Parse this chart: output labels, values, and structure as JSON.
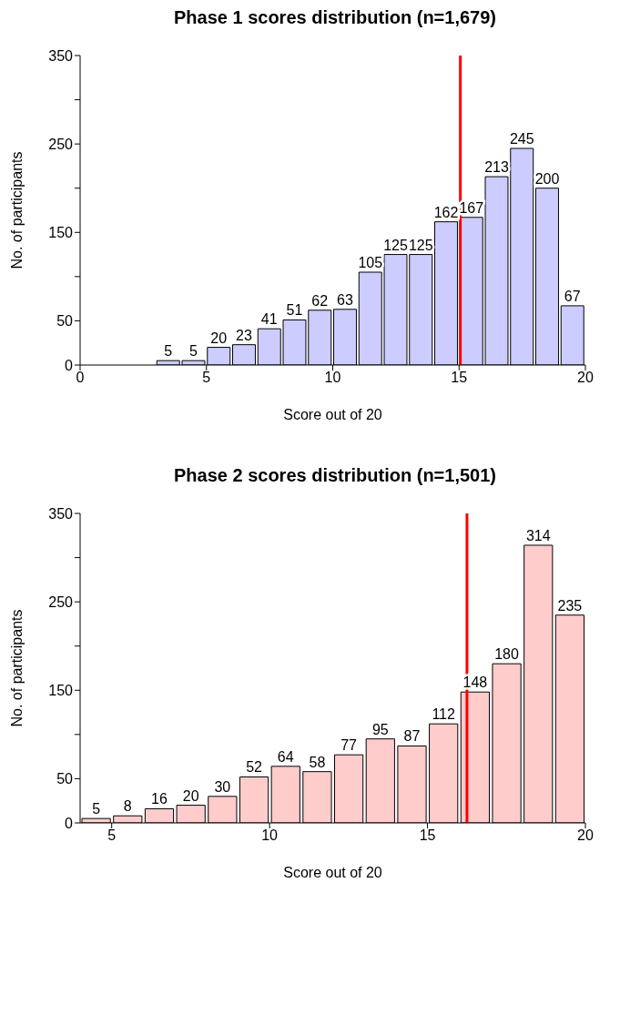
{
  "chart_data": [
    {
      "type": "histogram",
      "title": "Phase 1 scores distribution (n=1,679)",
      "xlabel": "Score out of 20",
      "ylabel": "No. of participants",
      "bins": [
        3,
        4,
        5,
        6,
        7,
        8,
        9,
        10,
        11,
        12,
        13,
        14,
        15,
        16,
        17,
        18,
        19,
        20
      ],
      "values": [
        5,
        5,
        20,
        23,
        41,
        51,
        62,
        63,
        105,
        125,
        125,
        162,
        167,
        213,
        245,
        200,
        67
      ],
      "color": "#ccccff",
      "data_labels": true,
      "xlim": [
        0,
        20
      ],
      "xticks": [
        0,
        5,
        10,
        15,
        20
      ],
      "ylim": [
        0,
        350
      ],
      "yticks": [
        0,
        50,
        {
          "value": 100,
          "label": null
        },
        150,
        {
          "value": 200,
          "label": null
        },
        250,
        {
          "value": 300,
          "label": null
        },
        350
      ],
      "ref_lines": [
        {
          "axis": "x",
          "value": 15.05,
          "color": "#ff0000"
        }
      ]
    },
    {
      "type": "histogram",
      "title": "Phase 2 scores distribution (n=1,501)",
      "xlabel": "Score out of 20",
      "ylabel": "No. of participants",
      "bins": [
        4,
        5,
        6,
        7,
        8,
        9,
        10,
        11,
        12,
        13,
        14,
        15,
        16,
        17,
        18,
        19,
        20
      ],
      "values": [
        5,
        8,
        16,
        20,
        30,
        52,
        64,
        58,
        77,
        95,
        87,
        112,
        148,
        180,
        314,
        235
      ],
      "color": "#ffcccc",
      "data_labels": true,
      "xlim": [
        4,
        20
      ],
      "xticks": [
        5,
        10,
        15,
        20
      ],
      "ylim": [
        0,
        350
      ],
      "yticks": [
        0,
        50,
        {
          "value": 100,
          "label": null
        },
        150,
        {
          "value": 200,
          "label": null
        },
        250,
        {
          "value": 300,
          "label": null
        },
        350
      ],
      "ref_lines": [
        {
          "axis": "x",
          "value": 16.25,
          "color": "#ff0000"
        }
      ]
    }
  ]
}
